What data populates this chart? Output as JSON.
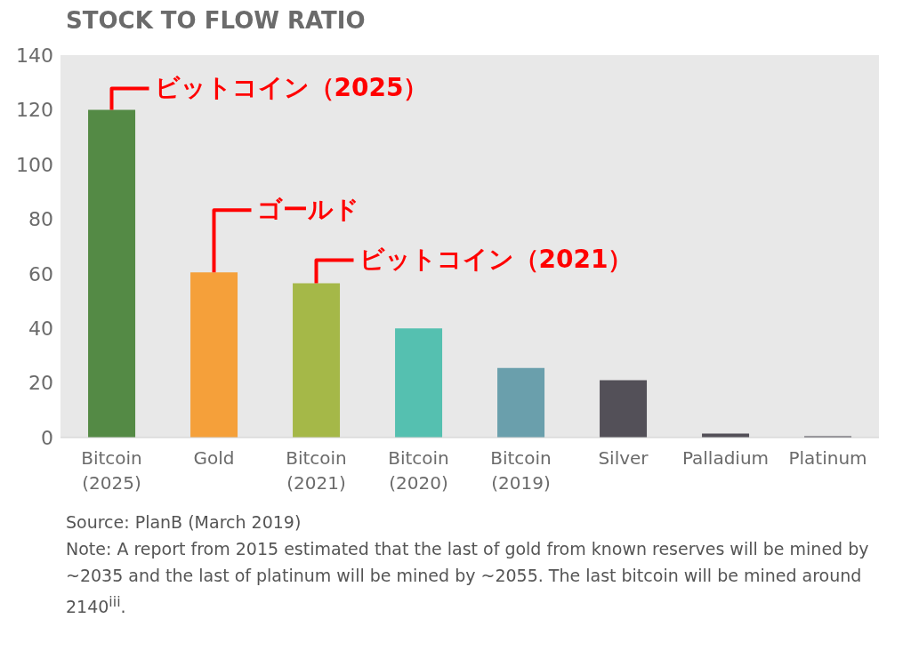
{
  "chart_data": {
    "type": "bar",
    "title": "STOCK TO FLOW RATIO",
    "categories": [
      "Bitcoin (2025)",
      "Gold",
      "Bitcoin (2021)",
      "Bitcoin (2020)",
      "Bitcoin (2019)",
      "Silver",
      "Palladium",
      "Platinum"
    ],
    "values": [
      120,
      60.5,
      56.5,
      40,
      25.5,
      21,
      1.5,
      0.5
    ],
    "colors": [
      "#548a45",
      "#f5a03a",
      "#a5b848",
      "#55c0b0",
      "#6a9fac",
      "#535058",
      "#535058",
      "#535058"
    ],
    "ylim": [
      0,
      140
    ],
    "yticks": [
      0,
      20,
      40,
      60,
      80,
      100,
      120,
      140
    ],
    "grid": false,
    "annotations": [
      {
        "text": "ビットコイン（2025）",
        "x": "Bitcoin (2025)",
        "y": 120
      },
      {
        "text": "ゴールド",
        "x": "Gold",
        "y": 60.5
      },
      {
        "text": "ビットコイン（2021）",
        "x": "Bitcoin (2021)",
        "y": 56.5
      },
      "Source: PlanB (March 2019)",
      "Note: A report from 2015 estimated that the last of gold from known reserves will be mined by ~2035 and the last of platinum will be mined by ~2055. The last bitcoin will be mined around 2140$^{iii}$."
    ]
  }
}
